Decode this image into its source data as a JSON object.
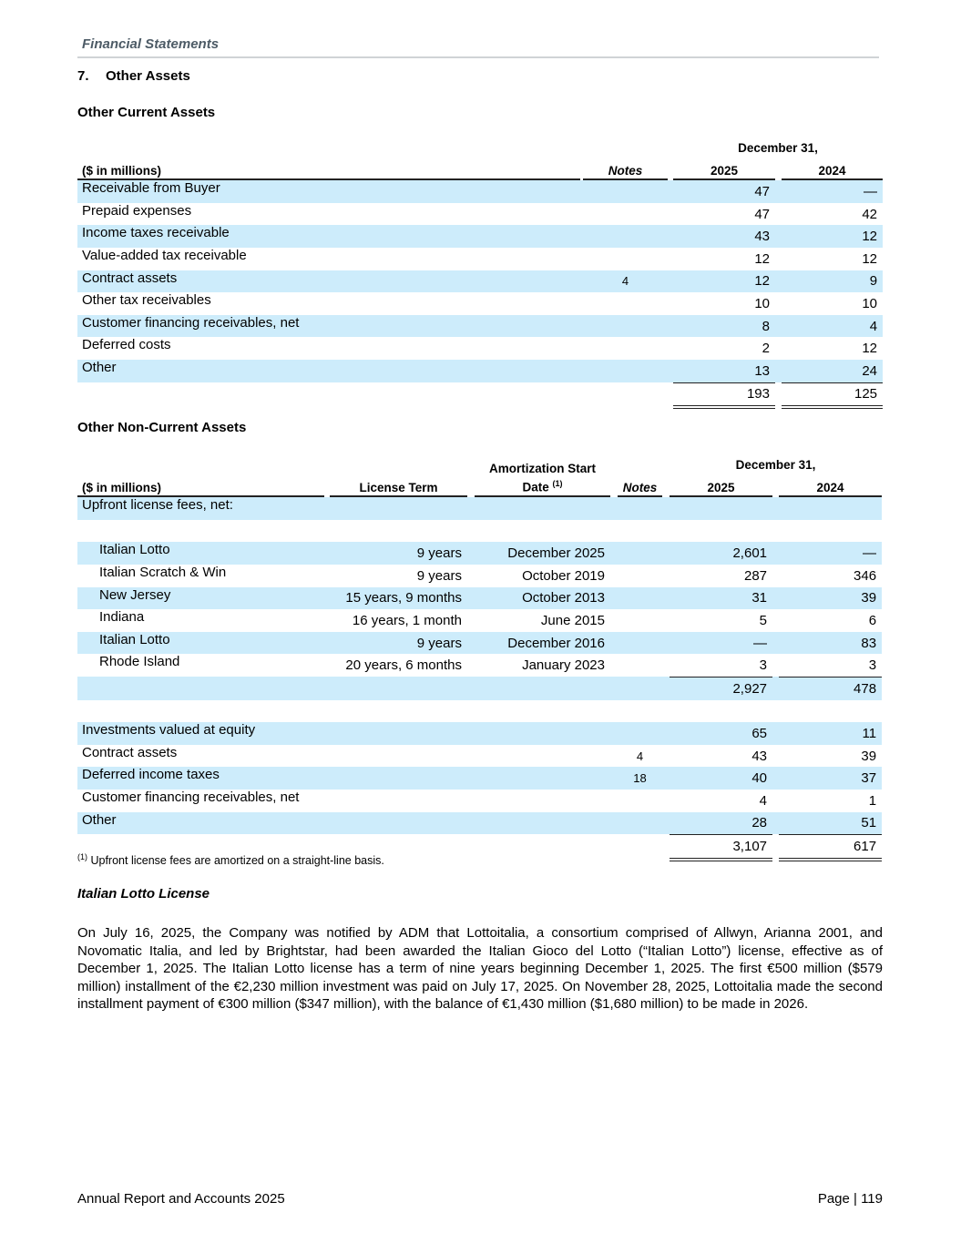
{
  "header": {
    "section": "Financial Statements"
  },
  "note": {
    "number": "7.",
    "title": "Other Assets"
  },
  "current": {
    "title": "Other Current Assets",
    "date_header": "December 31,",
    "col_label": "($ in millions)",
    "col_notes": "Notes",
    "col_2025": "2025",
    "col_2024": "2024",
    "rows": [
      {
        "label": "Receivable from Buyer",
        "notes": "",
        "y2025": "47",
        "y2024": "—"
      },
      {
        "label": "Prepaid expenses",
        "notes": "",
        "y2025": "47",
        "y2024": "42"
      },
      {
        "label": "Income taxes receivable",
        "notes": "",
        "y2025": "43",
        "y2024": "12"
      },
      {
        "label": "Value-added tax receivable",
        "notes": "",
        "y2025": "12",
        "y2024": "12"
      },
      {
        "label": "Contract assets",
        "notes": "4",
        "y2025": "12",
        "y2024": "9"
      },
      {
        "label": "Other tax receivables",
        "notes": "",
        "y2025": "10",
        "y2024": "10"
      },
      {
        "label": "Customer financing receivables, net",
        "notes": "",
        "y2025": "8",
        "y2024": "4"
      },
      {
        "label": "Deferred costs",
        "notes": "",
        "y2025": "2",
        "y2024": "12"
      },
      {
        "label": "Other",
        "notes": "",
        "y2025": "13",
        "y2024": "24"
      }
    ],
    "total": {
      "y2025": "193",
      "y2024": "125"
    }
  },
  "noncurrent": {
    "title": "Other Non-Current Assets",
    "date_header": "December 31,",
    "col_label": "($ in millions)",
    "col_term": "License Term",
    "col_date": "Amortization Start Date",
    "col_date_sup": "(1)",
    "col_notes": "Notes",
    "col_2025": "2025",
    "col_2024": "2024",
    "upfront_label": "Upfront license fees, net:",
    "licenses": [
      {
        "label": "Italian Lotto",
        "term": "9 years",
        "date": "December 2025",
        "y2025": "2,601",
        "y2024": "—"
      },
      {
        "label": "Italian Scratch & Win",
        "term": "9 years",
        "date": "October 2019",
        "y2025": "287",
        "y2024": "346"
      },
      {
        "label": "New Jersey",
        "term": "15 years, 9 months",
        "date": "October 2013",
        "y2025": "31",
        "y2024": "39"
      },
      {
        "label": "Indiana",
        "term": "16 years, 1 month",
        "date": "June 2015",
        "y2025": "5",
        "y2024": "6"
      },
      {
        "label": "Italian Lotto",
        "term": "9 years",
        "date": "December 2016",
        "y2025": "—",
        "y2024": "83"
      },
      {
        "label": "Rhode Island",
        "term": "20 years, 6 months",
        "date": "January 2023",
        "y2025": "3",
        "y2024": "3"
      }
    ],
    "license_subtotal": {
      "y2025": "2,927",
      "y2024": "478"
    },
    "rows": [
      {
        "label": "Investments valued at equity",
        "notes": "",
        "y2025": "65",
        "y2024": "11"
      },
      {
        "label": "Contract assets",
        "notes": "4",
        "y2025": "43",
        "y2024": "39"
      },
      {
        "label": "Deferred income taxes",
        "notes": "18",
        "y2025": "40",
        "y2024": "37"
      },
      {
        "label": "Customer financing receivables, net",
        "notes": "",
        "y2025": "4",
        "y2024": "1"
      },
      {
        "label": "Other",
        "notes": "",
        "y2025": "28",
        "y2024": "51"
      }
    ],
    "total": {
      "y2025": "3,107",
      "y2024": "617"
    }
  },
  "footnote": {
    "marker": "(1)",
    "text": "Upfront license fees are amortized on a straight-line basis."
  },
  "lotto_license": {
    "title": "Italian Lotto License",
    "text": "On July 16, 2025, the Company was notified by ADM that Lottoitalia, a consortium comprised of Allwyn, Arianna 2001, and Novomatic Italia, and led by Brightstar, had been awarded the Italian Gioco del Lotto (“Italian Lotto”) license, effective as of December 1, 2025. The Italian Lotto license has a term of nine years beginning December 1, 2025. The first €500 million ($579 million) installment of the €2,230 million investment was paid on July 17, 2025. On November 28, 2025, Lottoitalia made the second installment payment of €300 million ($347 million), with the balance of €1,430 million ($1,680 million) to be made in 2026."
  },
  "footer": {
    "left": "Annual Report and Accounts 2025",
    "right": "Page | 119"
  },
  "colors": {
    "row_band": "#cdecfb",
    "header_text": "#4d5b66"
  }
}
